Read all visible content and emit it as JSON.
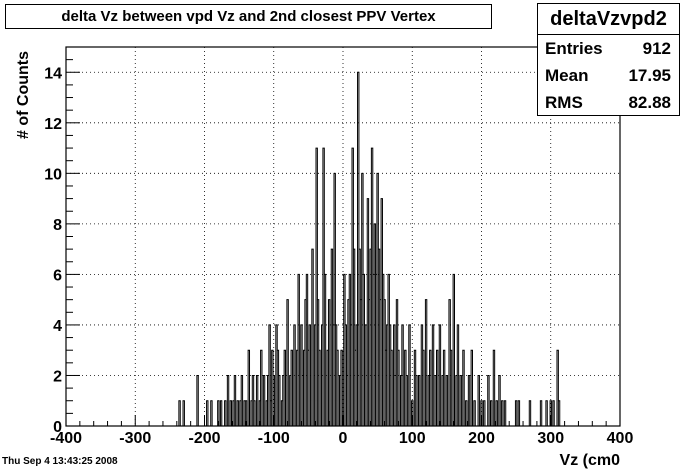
{
  "chart_data": {
    "type": "bar",
    "title": "delta Vz between vpd Vz and 2nd closest PPV Vertex",
    "xlabel": "Vz (cm0",
    "ylabel": "# of Counts",
    "xlim": [
      -400,
      400
    ],
    "ylim": [
      0,
      15
    ],
    "x_ticks": [
      -400,
      -300,
      -200,
      -100,
      0,
      100,
      200,
      300,
      400
    ],
    "x_tick_labels": [
      "-400",
      "-300",
      "-200",
      "-100",
      "0",
      "100",
      "200",
      "300",
      "400"
    ],
    "y_ticks": [
      0,
      2,
      4,
      6,
      8,
      10,
      12,
      14
    ],
    "y_tick_labels": [
      "0",
      "2",
      "4",
      "6",
      "8",
      "10",
      "12",
      "14"
    ],
    "grid": true,
    "bin_width": 2,
    "bins": [
      [
        -236,
        1
      ],
      [
        -230,
        1
      ],
      [
        -210,
        2
      ],
      [
        -196,
        1
      ],
      [
        -190,
        1
      ],
      [
        -180,
        1
      ],
      [
        -176,
        1
      ],
      [
        -170,
        1
      ],
      [
        -166,
        2
      ],
      [
        -162,
        1
      ],
      [
        -158,
        1
      ],
      [
        -156,
        2
      ],
      [
        -152,
        1
      ],
      [
        -148,
        1
      ],
      [
        -146,
        2
      ],
      [
        -142,
        1
      ],
      [
        -140,
        1
      ],
      [
        -136,
        3
      ],
      [
        -132,
        1
      ],
      [
        -130,
        2
      ],
      [
        -128,
        1
      ],
      [
        -124,
        2
      ],
      [
        -120,
        1
      ],
      [
        -118,
        3
      ],
      [
        -114,
        2
      ],
      [
        -110,
        1
      ],
      [
        -108,
        2
      ],
      [
        -106,
        4
      ],
      [
        -104,
        1
      ],
      [
        -102,
        3
      ],
      [
        -100,
        2
      ],
      [
        -96,
        4
      ],
      [
        -94,
        3
      ],
      [
        -92,
        2
      ],
      [
        -88,
        1
      ],
      [
        -86,
        2
      ],
      [
        -84,
        3
      ],
      [
        -80,
        5
      ],
      [
        -76,
        2
      ],
      [
        -74,
        3
      ],
      [
        -70,
        4
      ],
      [
        -66,
        3
      ],
      [
        -64,
        6
      ],
      [
        -60,
        4
      ],
      [
        -58,
        2
      ],
      [
        -56,
        3
      ],
      [
        -54,
        5
      ],
      [
        -52,
        6
      ],
      [
        -50,
        3
      ],
      [
        -48,
        4
      ],
      [
        -44,
        7
      ],
      [
        -40,
        4
      ],
      [
        -38,
        11
      ],
      [
        -36,
        5
      ],
      [
        -34,
        3
      ],
      [
        -30,
        4
      ],
      [
        -28,
        11
      ],
      [
        -26,
        6
      ],
      [
        -22,
        3
      ],
      [
        -20,
        5
      ],
      [
        -16,
        7
      ],
      [
        -14,
        4
      ],
      [
        -12,
        10
      ],
      [
        -10,
        4
      ],
      [
        -8,
        3
      ],
      [
        -4,
        2
      ],
      [
        -2,
        3
      ],
      [
        2,
        6
      ],
      [
        4,
        4
      ],
      [
        6,
        2
      ],
      [
        8,
        5
      ],
      [
        10,
        6
      ],
      [
        12,
        4
      ],
      [
        14,
        11
      ],
      [
        16,
        7
      ],
      [
        18,
        3
      ],
      [
        20,
        4
      ],
      [
        22,
        14
      ],
      [
        24,
        7
      ],
      [
        26,
        5
      ],
      [
        28,
        10
      ],
      [
        30,
        6
      ],
      [
        32,
        4
      ],
      [
        36,
        9
      ],
      [
        38,
        5
      ],
      [
        40,
        7
      ],
      [
        42,
        11
      ],
      [
        44,
        6
      ],
      [
        46,
        8
      ],
      [
        48,
        6
      ],
      [
        50,
        10
      ],
      [
        52,
        7
      ],
      [
        54,
        5
      ],
      [
        56,
        9
      ],
      [
        58,
        6
      ],
      [
        60,
        5
      ],
      [
        62,
        3
      ],
      [
        64,
        4
      ],
      [
        66,
        6
      ],
      [
        68,
        4
      ],
      [
        70,
        3
      ],
      [
        74,
        4
      ],
      [
        76,
        2
      ],
      [
        78,
        5
      ],
      [
        80,
        3
      ],
      [
        84,
        2
      ],
      [
        86,
        4
      ],
      [
        90,
        3
      ],
      [
        92,
        2
      ],
      [
        96,
        4
      ],
      [
        100,
        1
      ],
      [
        104,
        3
      ],
      [
        106,
        2
      ],
      [
        110,
        2
      ],
      [
        114,
        4
      ],
      [
        116,
        3
      ],
      [
        120,
        5
      ],
      [
        124,
        2
      ],
      [
        126,
        3
      ],
      [
        130,
        4
      ],
      [
        134,
        2
      ],
      [
        136,
        3
      ],
      [
        140,
        4
      ],
      [
        144,
        2
      ],
      [
        146,
        3
      ],
      [
        150,
        2
      ],
      [
        154,
        5
      ],
      [
        156,
        3
      ],
      [
        160,
        6
      ],
      [
        164,
        2
      ],
      [
        166,
        4
      ],
      [
        170,
        2
      ],
      [
        174,
        3
      ],
      [
        178,
        1
      ],
      [
        182,
        2
      ],
      [
        186,
        3
      ],
      [
        190,
        1
      ],
      [
        196,
        2
      ],
      [
        200,
        1
      ],
      [
        204,
        1
      ],
      [
        210,
        2
      ],
      [
        214,
        1
      ],
      [
        218,
        3
      ],
      [
        222,
        1
      ],
      [
        226,
        2
      ],
      [
        230,
        1
      ],
      [
        234,
        1
      ],
      [
        250,
        1
      ],
      [
        254,
        1
      ],
      [
        270,
        1
      ],
      [
        286,
        1
      ],
      [
        294,
        1
      ],
      [
        300,
        1
      ],
      [
        304,
        1
      ],
      [
        310,
        3
      ],
      [
        312,
        1
      ]
    ]
  },
  "stats": {
    "name": "deltaVzvpd2",
    "rows": [
      {
        "label": "Entries",
        "value": "912"
      },
      {
        "label": "Mean",
        "value": "17.95"
      },
      {
        "label": "RMS",
        "value": "82.88"
      }
    ]
  },
  "footer": {
    "date": "Thu Sep  4 13:43:25 2008"
  }
}
